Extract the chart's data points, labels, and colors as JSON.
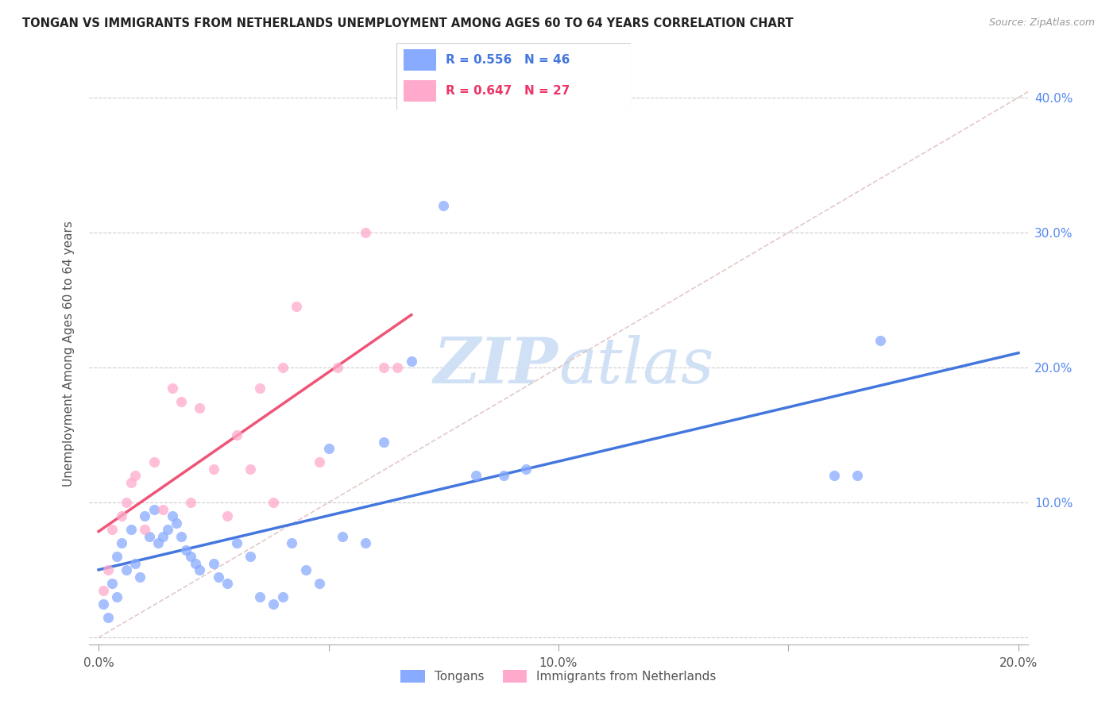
{
  "title": "TONGAN VS IMMIGRANTS FROM NETHERLANDS UNEMPLOYMENT AMONG AGES 60 TO 64 YEARS CORRELATION CHART",
  "source": "Source: ZipAtlas.com",
  "ylabel": "Unemployment Among Ages 60 to 64 years",
  "xlim": [
    -0.002,
    0.202
  ],
  "ylim": [
    -0.005,
    0.425
  ],
  "xticks": [
    0.0,
    0.05,
    0.1,
    0.15,
    0.2
  ],
  "yticks": [
    0.0,
    0.1,
    0.2,
    0.3,
    0.4
  ],
  "xticklabels": [
    "0.0%",
    "",
    "10.0%",
    "",
    "20.0%"
  ],
  "yticklabels_right": [
    "",
    "10.0%",
    "20.0%",
    "30.0%",
    "40.0%"
  ],
  "legend_r1": "R = 0.556",
  "legend_n1": "N = 46",
  "legend_r2": "R = 0.647",
  "legend_n2": "N = 27",
  "legend_bottom1": "Tongans",
  "legend_bottom2": "Immigrants from Netherlands",
  "blue_scatter_color": "#88aaff",
  "pink_scatter_color": "#ffaacc",
  "blue_line_color": "#4477dd",
  "pink_line_color": "#ee5577",
  "diag_color": "#ddbbbb",
  "watermark_color": "#d0e0f5",
  "blue_points_x": [
    0.001,
    0.002,
    0.003,
    0.004,
    0.004,
    0.005,
    0.006,
    0.007,
    0.008,
    0.009,
    0.01,
    0.011,
    0.012,
    0.013,
    0.014,
    0.015,
    0.016,
    0.017,
    0.018,
    0.019,
    0.02,
    0.021,
    0.022,
    0.025,
    0.026,
    0.028,
    0.03,
    0.033,
    0.035,
    0.038,
    0.04,
    0.042,
    0.045,
    0.048,
    0.05,
    0.053,
    0.058,
    0.062,
    0.068,
    0.075,
    0.082,
    0.088,
    0.093,
    0.16,
    0.165,
    0.17
  ],
  "blue_points_y": [
    0.025,
    0.015,
    0.04,
    0.03,
    0.06,
    0.07,
    0.05,
    0.08,
    0.055,
    0.045,
    0.09,
    0.075,
    0.095,
    0.07,
    0.075,
    0.08,
    0.09,
    0.085,
    0.075,
    0.065,
    0.06,
    0.055,
    0.05,
    0.055,
    0.045,
    0.04,
    0.07,
    0.06,
    0.03,
    0.025,
    0.03,
    0.07,
    0.05,
    0.04,
    0.14,
    0.075,
    0.07,
    0.145,
    0.205,
    0.32,
    0.12,
    0.12,
    0.125,
    0.12,
    0.12,
    0.22
  ],
  "pink_points_x": [
    0.001,
    0.002,
    0.003,
    0.005,
    0.006,
    0.007,
    0.008,
    0.01,
    0.012,
    0.014,
    0.016,
    0.018,
    0.02,
    0.022,
    0.025,
    0.028,
    0.03,
    0.033,
    0.035,
    0.038,
    0.04,
    0.043,
    0.048,
    0.052,
    0.058,
    0.062,
    0.065
  ],
  "pink_points_y": [
    0.035,
    0.05,
    0.08,
    0.09,
    0.1,
    0.115,
    0.12,
    0.08,
    0.13,
    0.095,
    0.185,
    0.175,
    0.1,
    0.17,
    0.125,
    0.09,
    0.15,
    0.125,
    0.185,
    0.1,
    0.2,
    0.245,
    0.13,
    0.2,
    0.3,
    0.2,
    0.2
  ]
}
